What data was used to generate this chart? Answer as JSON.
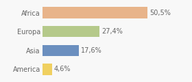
{
  "categories": [
    "Africa",
    "Europa",
    "Asia",
    "America"
  ],
  "values": [
    50.5,
    27.4,
    17.6,
    4.6
  ],
  "labels": [
    "50,5%",
    "27,4%",
    "17,6%",
    "4,6%"
  ],
  "bar_colors": [
    "#e8b48a",
    "#b5c98a",
    "#6b8fbf",
    "#f0d060"
  ],
  "background_color": "#f8f8f8",
  "xlim": [
    0,
    70
  ],
  "label_fontsize": 7,
  "category_fontsize": 7,
  "bar_height": 0.6
}
